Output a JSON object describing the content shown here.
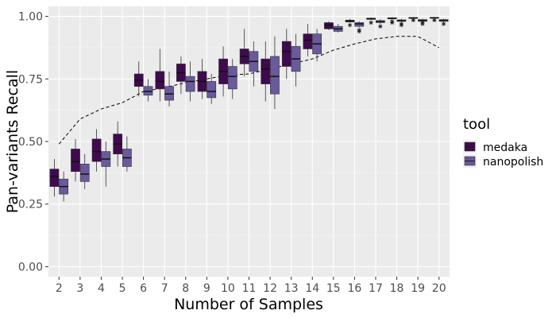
{
  "chart_data": {
    "type": "boxplot",
    "xlabel": "Number of Samples",
    "ylabel": "Pan-variants Recall",
    "ylim": [
      -0.04,
      1.04
    ],
    "yticks": [
      0.0,
      0.25,
      0.5,
      0.75,
      1.0
    ],
    "ytick_labels": [
      "0.00",
      "0.25",
      "0.50",
      "0.75",
      "1.00"
    ],
    "categories": [
      "2",
      "3",
      "4",
      "5",
      "6",
      "7",
      "8",
      "9",
      "10",
      "11",
      "12",
      "13",
      "14",
      "15",
      "16",
      "17",
      "18",
      "19",
      "20"
    ],
    "grid": true,
    "legend": {
      "title": "tool",
      "position": "right"
    },
    "series": [
      {
        "name": "medaka",
        "color": "#3f0a4e",
        "boxes": [
          {
            "min": 0.28,
            "q1": 0.32,
            "median": 0.36,
            "q3": 0.39,
            "max": 0.43
          },
          {
            "min": 0.34,
            "q1": 0.38,
            "median": 0.42,
            "q3": 0.47,
            "max": 0.51
          },
          {
            "min": 0.38,
            "q1": 0.42,
            "median": 0.46,
            "q3": 0.51,
            "max": 0.55
          },
          {
            "min": 0.4,
            "q1": 0.45,
            "median": 0.49,
            "q3": 0.53,
            "max": 0.58
          },
          {
            "min": 0.68,
            "q1": 0.72,
            "median": 0.745,
            "q3": 0.77,
            "max": 0.82
          },
          {
            "min": 0.66,
            "q1": 0.71,
            "median": 0.74,
            "q3": 0.78,
            "max": 0.87
          },
          {
            "min": 0.69,
            "q1": 0.74,
            "median": 0.775,
            "q3": 0.81,
            "max": 0.84
          },
          {
            "min": 0.67,
            "q1": 0.7,
            "median": 0.74,
            "q3": 0.78,
            "max": 0.83
          },
          {
            "min": 0.68,
            "q1": 0.73,
            "median": 0.78,
            "q3": 0.83,
            "max": 0.88
          },
          {
            "min": 0.76,
            "q1": 0.81,
            "median": 0.84,
            "q3": 0.87,
            "max": 0.95
          },
          {
            "min": 0.66,
            "q1": 0.73,
            "median": 0.79,
            "q3": 0.83,
            "max": 0.9
          },
          {
            "min": 0.75,
            "q1": 0.8,
            "median": 0.86,
            "q3": 0.9,
            "max": 0.95
          },
          {
            "min": 0.84,
            "q1": 0.87,
            "median": 0.905,
            "q3": 0.93,
            "max": 0.97
          },
          {
            "min": 0.945,
            "q1": 0.95,
            "median": 0.965,
            "q3": 0.975,
            "max": 0.98
          },
          {
            "min": 0.975,
            "q1": 0.978,
            "median": 0.98,
            "q3": 0.985,
            "max": 0.99,
            "outliers": [
              0.965
            ]
          },
          {
            "min": 0.985,
            "q1": 0.988,
            "median": 0.99,
            "q3": 0.993,
            "max": 0.996,
            "outliers": [
              0.975
            ]
          },
          {
            "min": 0.988,
            "q1": 0.99,
            "median": 0.992,
            "q3": 0.994,
            "max": 0.997,
            "outliers": [
              0.975,
              0.98
            ]
          },
          {
            "min": 0.99,
            "q1": 0.992,
            "median": 0.994,
            "q3": 0.995,
            "max": 0.997,
            "outliers": [
              0.985
            ]
          },
          {
            "min": 0.992,
            "q1": 0.993,
            "median": 0.994,
            "q3": 0.996,
            "max": 0.998,
            "outliers": [
              0.985
            ]
          }
        ]
      },
      {
        "name": "nanopolish",
        "color": "#6a5a9c",
        "boxes": [
          {
            "min": 0.26,
            "q1": 0.29,
            "median": 0.32,
            "q3": 0.35,
            "max": 0.38
          },
          {
            "min": 0.31,
            "q1": 0.34,
            "median": 0.37,
            "q3": 0.41,
            "max": 0.45
          },
          {
            "min": 0.32,
            "q1": 0.4,
            "median": 0.43,
            "q3": 0.46,
            "max": 0.5
          },
          {
            "min": 0.38,
            "q1": 0.4,
            "median": 0.435,
            "q3": 0.47,
            "max": 0.52
          },
          {
            "min": 0.66,
            "q1": 0.685,
            "median": 0.7,
            "q3": 0.72,
            "max": 0.75
          },
          {
            "min": 0.64,
            "q1": 0.665,
            "median": 0.69,
            "q3": 0.72,
            "max": 0.78
          },
          {
            "min": 0.66,
            "q1": 0.7,
            "median": 0.74,
            "q3": 0.76,
            "max": 0.82
          },
          {
            "min": 0.65,
            "q1": 0.675,
            "median": 0.7,
            "q3": 0.74,
            "max": 0.77
          },
          {
            "min": 0.67,
            "q1": 0.71,
            "median": 0.76,
            "q3": 0.8,
            "max": 0.83
          },
          {
            "min": 0.72,
            "q1": 0.78,
            "median": 0.82,
            "q3": 0.86,
            "max": 0.9
          },
          {
            "min": 0.63,
            "q1": 0.69,
            "median": 0.76,
            "q3": 0.84,
            "max": 0.92
          },
          {
            "min": 0.72,
            "q1": 0.78,
            "median": 0.83,
            "q3": 0.88,
            "max": 0.93
          },
          {
            "min": 0.82,
            "q1": 0.85,
            "median": 0.89,
            "q3": 0.93,
            "max": 0.95
          },
          {
            "min": 0.935,
            "q1": 0.94,
            "median": 0.95,
            "q3": 0.96,
            "max": 0.97
          },
          {
            "min": 0.955,
            "q1": 0.96,
            "median": 0.97,
            "q3": 0.975,
            "max": 0.98,
            "outliers": [
              0.94,
              0.945
            ]
          },
          {
            "min": 0.97,
            "q1": 0.975,
            "median": 0.98,
            "q3": 0.983,
            "max": 0.988,
            "outliers": [
              0.96
            ]
          },
          {
            "min": 0.975,
            "q1": 0.98,
            "median": 0.983,
            "q3": 0.986,
            "max": 0.99,
            "outliers": [
              0.965,
              0.97
            ]
          },
          {
            "min": 0.978,
            "q1": 0.98,
            "median": 0.984,
            "q3": 0.987,
            "max": 0.99,
            "outliers": [
              0.97,
              0.975
            ]
          },
          {
            "min": 0.978,
            "q1": 0.98,
            "median": 0.984,
            "q3": 0.987,
            "max": 0.99,
            "outliers": [
              0.97
            ]
          }
        ]
      }
    ],
    "reference_line": {
      "style": "dashed",
      "color": "#000000",
      "values": [
        0.49,
        0.59,
        0.63,
        0.655,
        0.7,
        0.715,
        0.735,
        0.75,
        0.765,
        0.77,
        0.79,
        0.81,
        0.83,
        0.865,
        0.89,
        0.91,
        0.92,
        0.92,
        0.875
      ]
    }
  }
}
